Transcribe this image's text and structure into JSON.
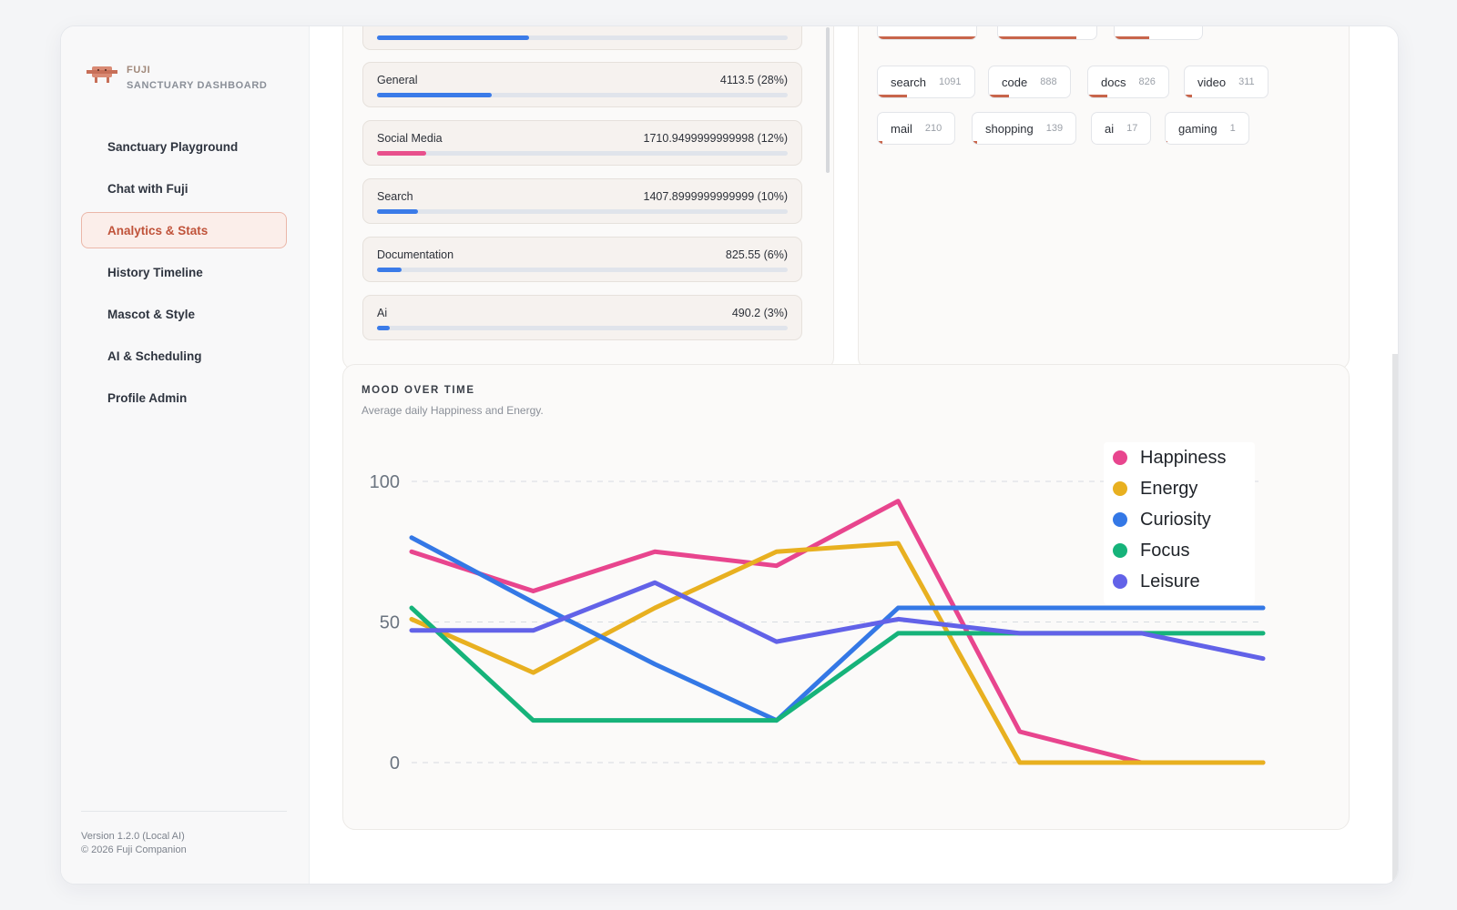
{
  "brand": {
    "name": "FUJI",
    "subtitle": "SANCTUARY DASHBOARD"
  },
  "nav": {
    "items": [
      {
        "label": "Sanctuary Playground",
        "active": false
      },
      {
        "label": "Chat with Fuji",
        "active": false
      },
      {
        "label": "Analytics & Stats",
        "active": true
      },
      {
        "label": "History Timeline",
        "active": false
      },
      {
        "label": "Mascot & Style",
        "active": false
      },
      {
        "label": "AI & Scheduling",
        "active": false
      },
      {
        "label": "Profile Admin",
        "active": false
      }
    ]
  },
  "footer": {
    "version": "Version 1.2.0 (Local AI)",
    "copyright": "© 2026 Fuji Companion"
  },
  "categories": [
    {
      "label": "",
      "value": "",
      "percent": 37,
      "color": "#3b7be8"
    },
    {
      "label": "General",
      "value": "4113.5 (28%)",
      "percent": 28,
      "color": "#3b7be8"
    },
    {
      "label": "Social Media",
      "value": "1710.9499999999998 (12%)",
      "percent": 12,
      "color": "#e8508c"
    },
    {
      "label": "Search",
      "value": "1407.8999999999999 (10%)",
      "percent": 10,
      "color": "#3b7be8"
    },
    {
      "label": "Documentation",
      "value": "825.55 (6%)",
      "percent": 6,
      "color": "#3b7be8"
    },
    {
      "label": "Ai",
      "value": "490.2 (3%)",
      "percent": 3,
      "color": "#3b7be8"
    }
  ],
  "tags": [
    {
      "name": "search",
      "count": "1091",
      "fraction": 0.3
    },
    {
      "name": "code",
      "count": "888",
      "fraction": 0.25
    },
    {
      "name": "docs",
      "count": "826",
      "fraction": 0.24
    },
    {
      "name": "video",
      "count": "311",
      "fraction": 0.09
    },
    {
      "name": "mail",
      "count": "210",
      "fraction": 0.06
    },
    {
      "name": "shopping",
      "count": "139",
      "fraction": 0.04
    },
    {
      "name": "ai",
      "count": "17",
      "fraction": 0.01
    },
    {
      "name": "gaming",
      "count": "1",
      "fraction": 0.005
    }
  ],
  "mood": {
    "title": "MOOD OVER TIME",
    "subtitle": "Average daily Happiness and Energy."
  },
  "chart_data": {
    "type": "line",
    "x": [
      1,
      2,
      3,
      4,
      5,
      6,
      7,
      8
    ],
    "ylim": [
      0,
      100
    ],
    "yticks": [
      0,
      50,
      100
    ],
    "grid": true,
    "legend_position": "top-right",
    "series": [
      {
        "name": "Happiness",
        "color": "#e8458e",
        "values": [
          75,
          61,
          75,
          70,
          93,
          11,
          0,
          0
        ]
      },
      {
        "name": "Energy",
        "color": "#e8b020",
        "values": [
          51,
          32,
          55,
          75,
          78,
          0,
          0,
          0
        ]
      },
      {
        "name": "Curiosity",
        "color": "#3478e6",
        "values": [
          80,
          57,
          35,
          15,
          55,
          55,
          55,
          55
        ]
      },
      {
        "name": "Focus",
        "color": "#16b37a",
        "values": [
          55,
          15,
          15,
          15,
          46,
          46,
          46,
          46
        ]
      },
      {
        "name": "Leisure",
        "color": "#6262e8",
        "values": [
          47,
          47,
          64,
          43,
          51,
          46,
          46,
          37
        ]
      }
    ]
  }
}
